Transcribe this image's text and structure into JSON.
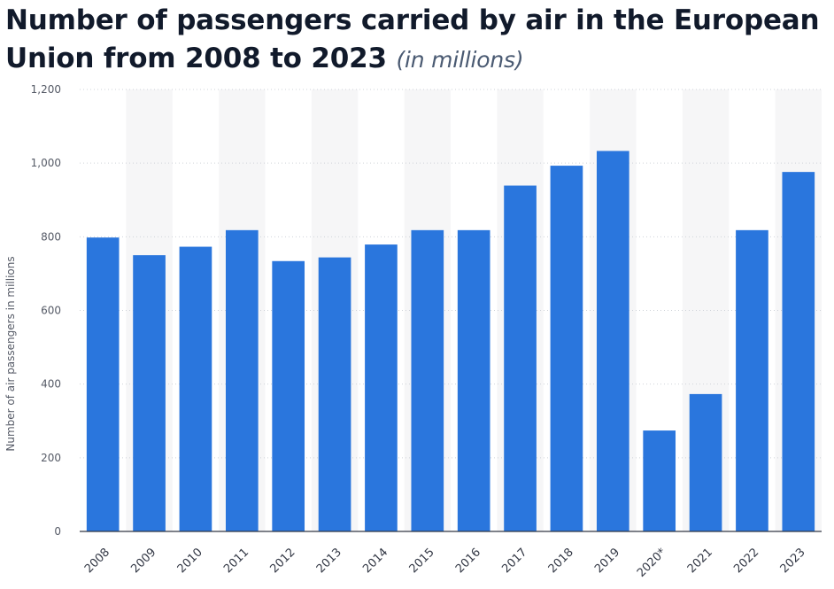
{
  "header": {
    "title": "Number of passengers carried by air in the European Union from 2008 to 2023",
    "subtitle": "(in millions)"
  },
  "chart_data": {
    "type": "bar",
    "title": "Number of passengers carried by air in the European Union from 2008 to 2023",
    "subtitle": "(in millions)",
    "xlabel": "",
    "ylabel": "Number of air passengers in millions",
    "ylim": [
      0,
      1200
    ],
    "yticks": [
      0,
      200,
      400,
      600,
      800,
      1000,
      1200
    ],
    "ytick_labels": [
      "0",
      "200",
      "400",
      "600",
      "800",
      "1,000",
      "1,200"
    ],
    "grid": true,
    "categories": [
      "2008",
      "2009",
      "2010",
      "2011",
      "2012",
      "2013",
      "2014",
      "2015",
      "2016",
      "2017",
      "2018",
      "2019",
      "2020*",
      "2021",
      "2022",
      "2023"
    ],
    "values": [
      798,
      750,
      773,
      818,
      734,
      744,
      779,
      818,
      818,
      939,
      993,
      1033,
      274,
      373,
      818,
      976
    ],
    "colors": {
      "bar": "#2a76dd",
      "band": "#f6f6f7",
      "title": "#111a2b",
      "subtitle": "#4a5a72"
    }
  }
}
